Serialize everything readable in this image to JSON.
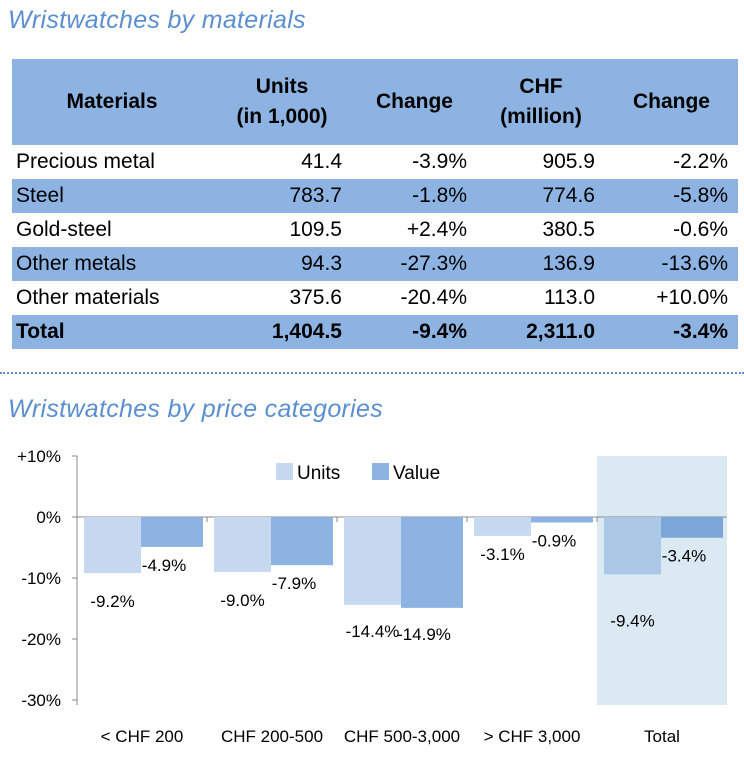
{
  "section1_title": "Wristwatches by materials",
  "table": {
    "headers": [
      [
        "Materials"
      ],
      [
        "Units",
        "(in 1,000)"
      ],
      [
        "Change"
      ],
      [
        "CHF",
        "(million)"
      ],
      [
        "Change"
      ]
    ],
    "rows": [
      [
        "Precious metal",
        "41.4",
        "-3.9%",
        "905.9",
        "-2.2%"
      ],
      [
        "Steel",
        "783.7",
        "-1.8%",
        "774.6",
        "-5.8%"
      ],
      [
        "Gold-steel",
        "109.5",
        "+2.4%",
        "380.5",
        "-0.6%"
      ],
      [
        "Other metals",
        "94.3",
        "-27.3%",
        "136.9",
        "-13.6%"
      ],
      [
        "Other materials",
        "375.6",
        "-20.4%",
        "113.0",
        "+10.0%"
      ],
      [
        "Total",
        "1,404.5",
        "-9.4%",
        "2,311.0",
        "-3.4%"
      ]
    ]
  },
  "section2_title": "Wristwatches by price categories",
  "chart_data": {
    "type": "bar",
    "title": "Wristwatches by price categories",
    "categories": [
      "< CHF 200",
      "CHF 200-500",
      "CHF 500-3,000",
      "> CHF 3,000",
      "Total"
    ],
    "series": [
      {
        "name": "Units",
        "values": [
          -9.2,
          -9.0,
          -14.4,
          -3.1,
          -9.4
        ],
        "labels": [
          "-9.2%",
          "-9.0%",
          "-14.4%",
          "-3.1%",
          "-9.4%"
        ],
        "color": "#c6d9f0"
      },
      {
        "name": "Value",
        "values": [
          -4.9,
          -7.9,
          -14.9,
          -0.9,
          -3.4
        ],
        "labels": [
          "-4.9%",
          "-7.9%",
          "-14.9%",
          "-0.9%",
          "-3.4%"
        ],
        "color": "#8db3e2"
      }
    ],
    "yticks": [
      "+10%",
      "0%",
      "-10%",
      "-20%",
      "-30%"
    ],
    "ytick_values": [
      10,
      0,
      -10,
      -20,
      -30
    ],
    "ylim": [
      -30,
      10
    ],
    "highlight_category": "Total",
    "highlight_color": "#dbe9f3",
    "legend_position": "top-center"
  }
}
